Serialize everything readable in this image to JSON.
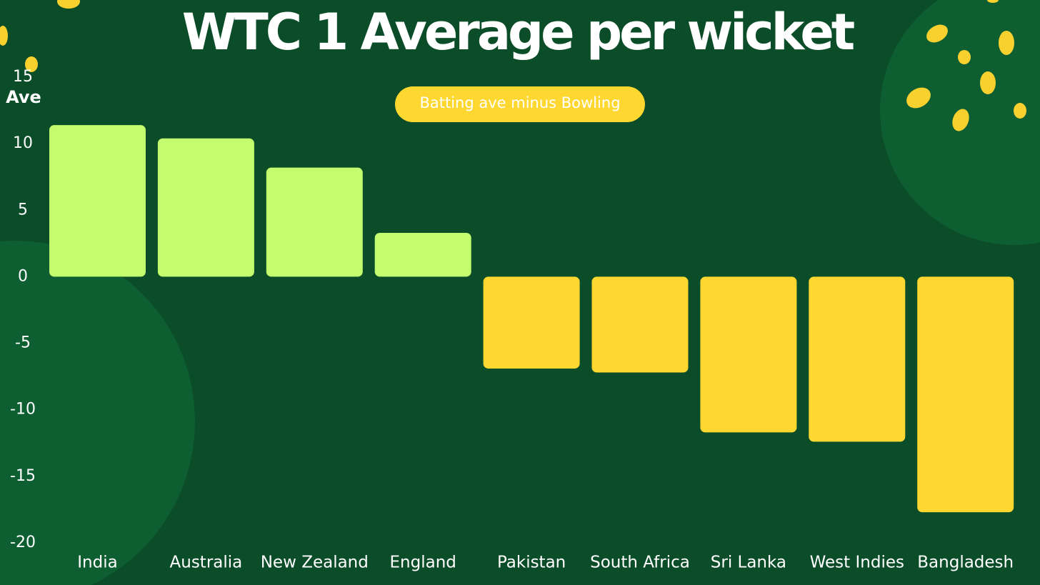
{
  "chart_data": {
    "type": "bar",
    "title": "WTC 1 Average per wicket",
    "subtitle": "Batting ave minus Bowling",
    "y_label": "Ave",
    "categories": [
      "India",
      "Australia",
      "New Zealand",
      "England",
      "Pakistan",
      "South Africa",
      "Sri Lanka",
      "West Indies",
      "Bangladesh"
    ],
    "values": [
      11.4,
      10.4,
      8.2,
      3.3,
      -6.9,
      -7.2,
      -11.7,
      -12.4,
      -17.7
    ],
    "positive_color": "#c3fc6e",
    "negative_color": "#ffd731",
    "ylim": [
      -20,
      15
    ],
    "yticks": [
      -20,
      -15,
      -10,
      -5,
      0,
      5,
      10,
      15
    ],
    "grid": false
  }
}
